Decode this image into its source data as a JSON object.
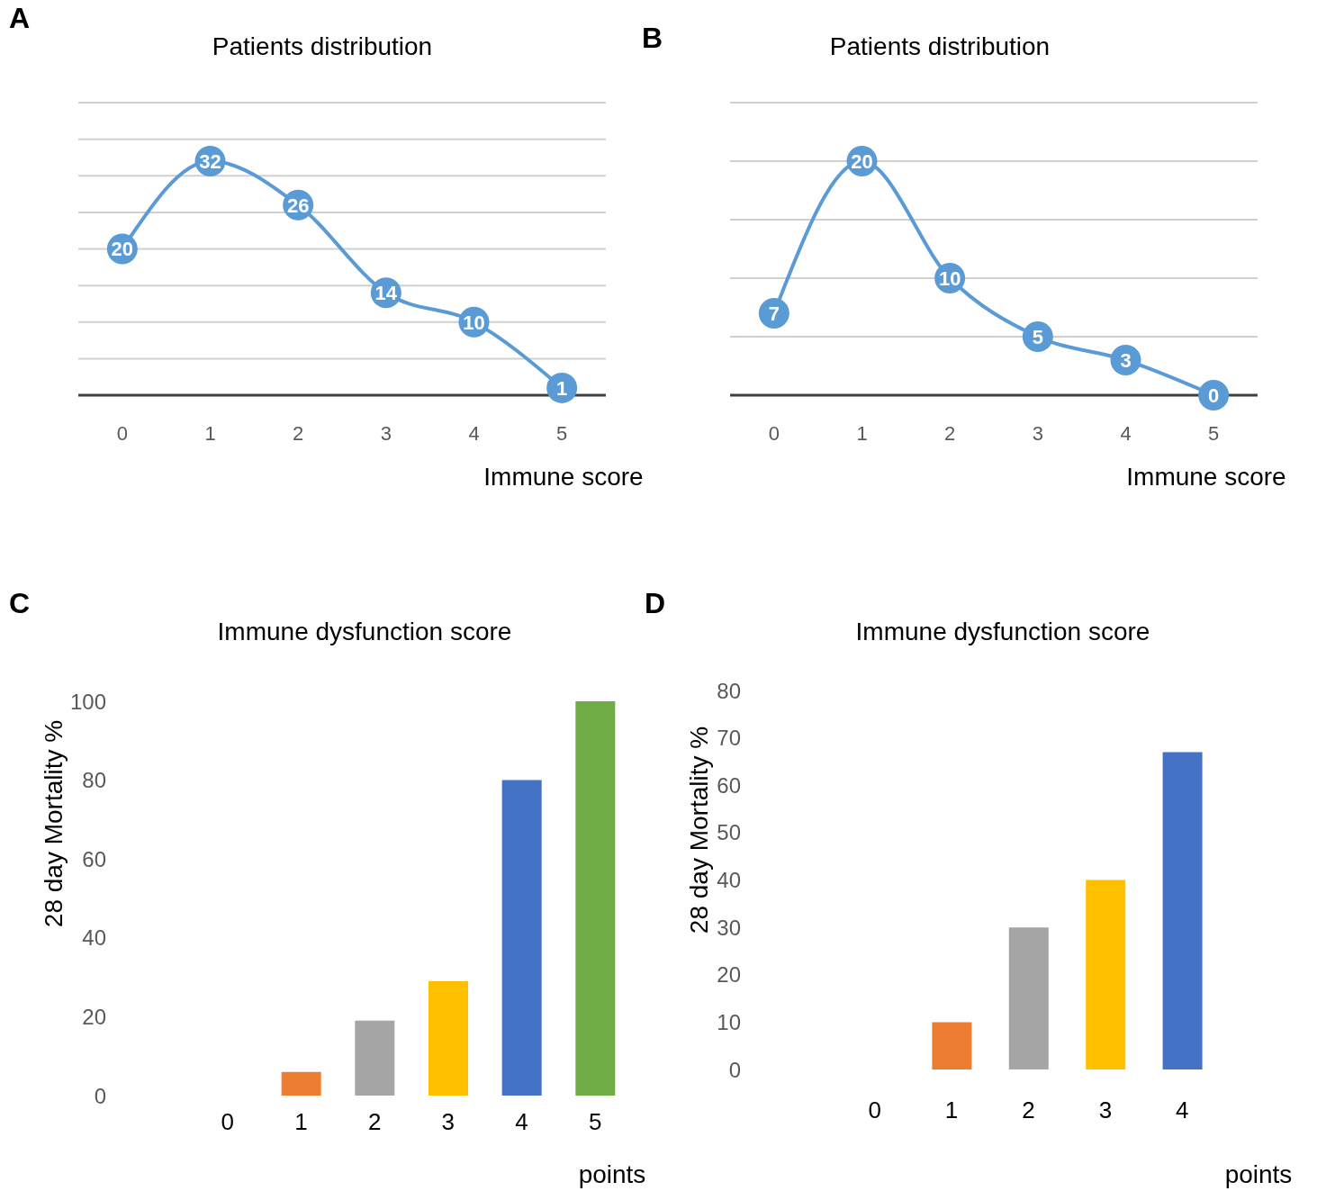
{
  "chart_data": [
    {
      "type": "line",
      "title": "Patients distribution",
      "xlabel": "Immune score",
      "annotations": [
        "A"
      ],
      "categories": [
        "0",
        "1",
        "2",
        "3",
        "4",
        "5"
      ],
      "values": [
        20,
        32,
        26,
        14,
        10,
        1
      ],
      "color": "#5b9bd5",
      "ylim": [
        0,
        40
      ],
      "yticks": [
        {
          "value": 0,
          "label": null
        },
        {
          "value": 5,
          "label": null
        },
        {
          "value": 10,
          "label": null
        },
        {
          "value": 15,
          "label": null
        },
        {
          "value": 20,
          "label": null
        },
        {
          "value": 25,
          "label": null
        },
        {
          "value": 30,
          "label": null
        },
        {
          "value": 35,
          "label": null
        },
        {
          "value": 40,
          "label": null
        }
      ],
      "tick_labels": "x",
      "grid": "y",
      "data_labels": true,
      "marker": "circle",
      "line_style": "solid"
    },
    {
      "type": "line",
      "title": "Patients distribution",
      "xlabel": "Immune score",
      "annotations": [
        "B"
      ],
      "categories": [
        "0",
        "1",
        "2",
        "3",
        "4",
        "5"
      ],
      "values": [
        7,
        20,
        10,
        5,
        3,
        0
      ],
      "color": "#5b9bd5",
      "ylim": [
        0,
        25
      ],
      "yticks": [
        {
          "value": 0,
          "label": null
        },
        {
          "value": 5,
          "label": null
        },
        {
          "value": 10,
          "label": null
        },
        {
          "value": 15,
          "label": null
        },
        {
          "value": 20,
          "label": null
        },
        {
          "value": 25,
          "label": null
        }
      ],
      "tick_labels": "x",
      "grid": "y",
      "data_labels": true,
      "marker": "circle",
      "line_style": "solid"
    },
    {
      "type": "bar",
      "title": "Immune dysfunction score",
      "xlabel": "points",
      "ylabel": "28 day Mortality %",
      "annotations": [
        "C"
      ],
      "categories": [
        "0",
        "1",
        "2",
        "3",
        "4",
        "5"
      ],
      "values": [
        0,
        6,
        19,
        29,
        80,
        100
      ],
      "colors": [
        null,
        "#ed7d31",
        "#a5a5a5",
        "#ffc000",
        "#4472c4",
        "#70ad47"
      ],
      "ylim": [
        0,
        100
      ],
      "yticks": [
        0,
        20,
        40,
        60,
        80,
        100
      ]
    },
    {
      "type": "bar",
      "title": "Immune dysfunction score",
      "xlabel": "points",
      "ylabel": "28 day Mortality %",
      "annotations": [
        "D"
      ],
      "categories": [
        "0",
        "1",
        "2",
        "3",
        "4"
      ],
      "values": [
        0,
        10,
        30,
        40,
        67
      ],
      "colors": [
        null,
        "#ed7d31",
        "#a5a5a5",
        "#ffc000",
        "#4472c4"
      ],
      "ylim": [
        0,
        80
      ],
      "yticks": [
        0,
        10,
        20,
        30,
        40,
        50,
        60,
        70,
        80
      ]
    }
  ]
}
